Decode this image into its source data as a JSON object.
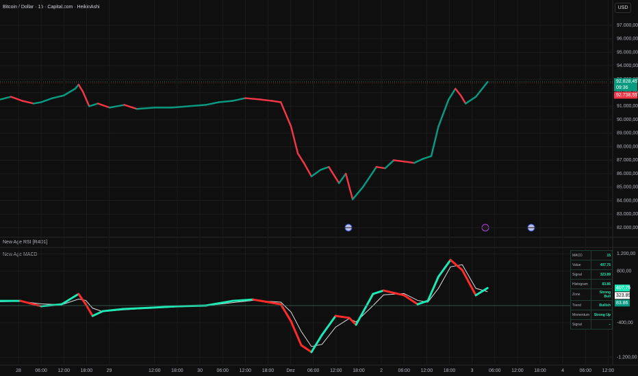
{
  "chart_data": [
    {
      "type": "line",
      "title": "Bitcoin / Dollar · 15 · Capital.com · HeikinAshi",
      "x": [
        -4.9,
        -2,
        1,
        4,
        6,
        9,
        12,
        15,
        15.9,
        17,
        18.7,
        21,
        24.1,
        28,
        31.3,
        36,
        40.4,
        45,
        49.5,
        53,
        56.7,
        60,
        64,
        67,
        69.4,
        72.1,
        73.9,
        75.5,
        77.5,
        80,
        82.1,
        84.8,
        86.6,
        88.4,
        91.1,
        94.7,
        97,
        99.3,
        102,
        104.7,
        107,
        109.2,
        111.1,
        113.8,
        115.6,
        117,
        118.3,
        121,
        124.1
      ],
      "series": [
        {
          "name": "BTCUSD",
          "up_color": "#089981",
          "down_color": "#f23645",
          "values": [
            91500,
            91700,
            91400,
            91200,
            91300,
            91600,
            91800,
            92300,
            92600,
            92100,
            91000,
            91200,
            90900,
            91100,
            90800,
            90900,
            90900,
            91000,
            91100,
            91300,
            91400,
            91600,
            91500,
            91400,
            91300,
            89500,
            87500,
            86800,
            85800,
            86300,
            86500,
            85300,
            86000,
            84100,
            85000,
            86500,
            86400,
            87000,
            86900,
            86800,
            87100,
            87300,
            89500,
            91500,
            92300,
            91800,
            91200,
            91700,
            92800
          ]
        }
      ],
      "xlim": [
        -4.9,
        157.2
      ],
      "ylim": [
        81392,
        98875
      ],
      "yticks": [
        {
          "value": 82000,
          "label": "82.000,00"
        },
        {
          "value": 83000,
          "label": "83.000,00"
        },
        {
          "value": 84000,
          "label": "84.000,00"
        },
        {
          "value": 85000,
          "label": "85.000,00"
        },
        {
          "value": 86000,
          "label": "86.000,00"
        },
        {
          "value": 87000,
          "label": "87.000,00"
        },
        {
          "value": 88000,
          "label": "88.000,00"
        },
        {
          "value": 89000,
          "label": "89.000,00"
        },
        {
          "value": 90000,
          "label": "90.000,00"
        },
        {
          "value": 91000,
          "label": "91.000,00"
        },
        {
          "value": 92000,
          "label": "92.000,00"
        },
        {
          "value": 93000,
          "label": "93.000,00"
        },
        {
          "value": 94000,
          "label": "94.000,00"
        },
        {
          "value": 95000,
          "label": "95.000,00"
        },
        {
          "value": 96000,
          "label": "96.000,00"
        },
        {
          "value": 97000,
          "label": "97.000,00"
        }
      ],
      "price_labels": [
        {
          "value": 92828.45,
          "label": "92.828,45",
          "color": "#089981"
        },
        {
          "value": 92738.55,
          "label": "92.738,55",
          "color": "#f23645"
        }
      ],
      "countdown": "09:36",
      "grid": true
    },
    {
      "type": "line",
      "title": "New Age MACD",
      "x": [
        -4.9,
        0.5,
        6,
        11.4,
        15.9,
        17.8,
        19.6,
        22.3,
        27.7,
        35,
        42.2,
        49.5,
        56.7,
        62.1,
        69.4,
        72.1,
        74.8,
        77.5,
        80.3,
        83.9,
        87.5,
        89.3,
        93.8,
        96.6,
        102,
        105.6,
        108.3,
        111.1,
        114.3,
        117.4,
        121,
        124.1
      ],
      "series": [
        {
          "name": "MACD",
          "up_color": "#1de9b6",
          "down_color": "#ff2a2a",
          "values": [
            110,
            110,
            -15,
            30,
            270,
            30,
            -240,
            -130,
            -80,
            -50,
            -15,
            0,
            110,
            140,
            30,
            -365,
            -920,
            -1080,
            -680,
            -240,
            -285,
            -445,
            270,
            350,
            240,
            30,
            110,
            670,
            1060,
            825,
            240,
            407.75
          ]
        },
        {
          "name": "Signal",
          "color": "#e0e0e0",
          "values": [
            90,
            100,
            40,
            20,
            150,
            120,
            -60,
            -140,
            -100,
            -60,
            -30,
            -5,
            70,
            120,
            80,
            -150,
            -600,
            -950,
            -900,
            -500,
            -300,
            -380,
            0,
            250,
            280,
            120,
            80,
            400,
            900,
            950,
            400,
            323.89
          ]
        }
      ],
      "xlim": [
        -4.9,
        157.2
      ],
      "ylim": [
        -1365,
        1349
      ],
      "yticks": [
        {
          "value": 1200,
          "label": "1.200,00"
        },
        {
          "value": 800,
          "label": "800,00"
        },
        {
          "value": -400,
          "label": "-400,00"
        },
        {
          "value": -1200,
          "label": "-1.200,00"
        }
      ],
      "xticks": [
        {
          "value": 0,
          "label": "28"
        },
        {
          "value": 6,
          "label": "06:00"
        },
        {
          "value": 12,
          "label": "12:00"
        },
        {
          "value": 18,
          "label": "18:00"
        },
        {
          "value": 24,
          "label": "29"
        },
        {
          "value": 36,
          "label": "12:00"
        },
        {
          "value": 42,
          "label": "18:00"
        },
        {
          "value": 48,
          "label": "30"
        },
        {
          "value": 54,
          "label": "06:00"
        },
        {
          "value": 60,
          "label": "12:00"
        },
        {
          "value": 66,
          "label": "18:00"
        },
        {
          "value": 72,
          "label": "Dez"
        },
        {
          "value": 78,
          "label": "06:00"
        },
        {
          "value": 84,
          "label": "12:00"
        },
        {
          "value": 90,
          "label": "18:00"
        },
        {
          "value": 96,
          "label": "2"
        },
        {
          "value": 102,
          "label": "06:00"
        },
        {
          "value": 108,
          "label": "12:00"
        },
        {
          "value": 114,
          "label": "18:00"
        },
        {
          "value": 120,
          "label": "3"
        },
        {
          "value": 126,
          "label": "06:00"
        },
        {
          "value": 132,
          "label": "12:00"
        },
        {
          "value": 138,
          "label": "18:00"
        },
        {
          "value": 144,
          "label": "4"
        },
        {
          "value": 150,
          "label": "06:00"
        },
        {
          "value": 156,
          "label": "12:00"
        }
      ],
      "last_labels": [
        407.75,
        323.89,
        83.86
      ],
      "last_label_colors": [
        "#1de9b6",
        "#ffffff",
        "#089981"
      ],
      "zero_line": true,
      "grid": true
    }
  ],
  "toolbar": {
    "currency": "USD"
  },
  "rsi_pane": {
    "label": "New Age RSI [R4D1]"
  },
  "indicator_table": {
    "rows": [
      [
        "MACD",
        "15"
      ],
      [
        "Value",
        "407.75"
      ],
      [
        "Signal",
        "323.89"
      ],
      [
        "Histogram",
        "83.86"
      ],
      [
        "Zone",
        "Strong Bull"
      ],
      [
        "Trend",
        "Bullish"
      ],
      [
        "Momentum",
        "Strong Up"
      ],
      [
        "Signal",
        "–"
      ]
    ]
  }
}
